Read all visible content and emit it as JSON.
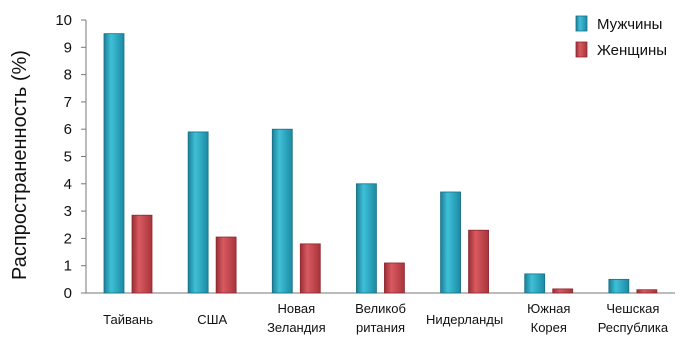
{
  "chart_data": {
    "type": "bar",
    "ylabel": "Распространенность (%)",
    "xlabel": "",
    "title": "",
    "ylim": [
      0,
      10
    ],
    "yticks": [
      0,
      1,
      2,
      3,
      4,
      5,
      6,
      7,
      8,
      9,
      10
    ],
    "categories": [
      [
        "Тайвань"
      ],
      [
        "США"
      ],
      [
        "Новая",
        "Зеландия"
      ],
      [
        "Великоб",
        "ритания"
      ],
      [
        "Нидерланды"
      ],
      [
        "Южная",
        "Корея"
      ],
      [
        "Чешская",
        "Республика"
      ]
    ],
    "series": [
      {
        "name": "Мужчины",
        "color": "#2aa6c0",
        "values": [
          9.5,
          5.9,
          6.0,
          4.0,
          3.7,
          0.7,
          0.5
        ]
      },
      {
        "name": "Женщины",
        "color": "#c0434a",
        "values": [
          2.85,
          2.05,
          1.8,
          1.1,
          2.3,
          0.15,
          0.12
        ]
      }
    ],
    "legend_position": "top-right",
    "grid": false
  }
}
